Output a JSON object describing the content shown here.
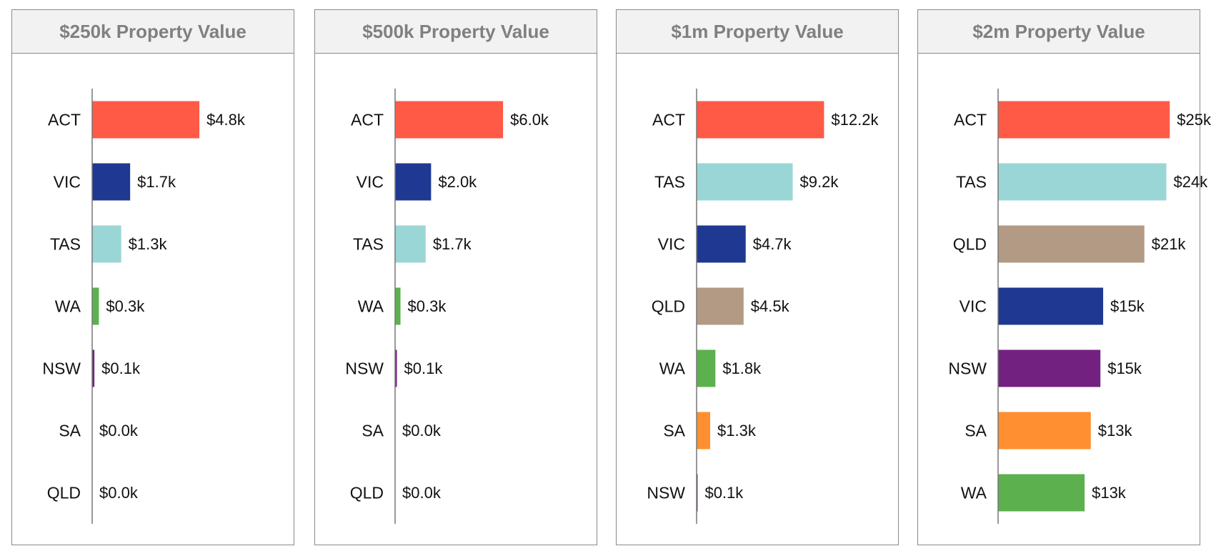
{
  "colors": {
    "ACT": "#FF5A46",
    "VIC": "#1F3892",
    "TAS": "#9BD6D6",
    "WA": "#5DB04E",
    "NSW": "#732181",
    "SA": "#FF8F31",
    "QLD": "#B39A84",
    "axis": "#777777",
    "panel_border": "#8a8a8a",
    "header_bg": "#f2f2f2",
    "title_text": "#808080"
  },
  "chart_data": [
    {
      "type": "bar",
      "orientation": "horizontal",
      "title": "$250k Property Value",
      "xlim": [
        0,
        8.7
      ],
      "categories": [
        "ACT",
        "VIC",
        "TAS",
        "WA",
        "NSW",
        "SA",
        "QLD"
      ],
      "values": [
        4.8,
        1.7,
        1.3,
        0.3,
        0.1,
        0.0,
        0.0
      ],
      "labels": [
        "$4.8k",
        "$1.7k",
        "$1.3k",
        "$0.3k",
        "$0.1k",
        "$0.0k",
        "$0.0k"
      ]
    },
    {
      "type": "bar",
      "orientation": "horizontal",
      "title": "$500k Property Value",
      "xlim": [
        0,
        10.8
      ],
      "categories": [
        "ACT",
        "VIC",
        "TAS",
        "WA",
        "NSW",
        "SA",
        "QLD"
      ],
      "values": [
        6.0,
        2.0,
        1.7,
        0.3,
        0.1,
        0.0,
        0.0
      ],
      "labels": [
        "$6.0k",
        "$2.0k",
        "$1.7k",
        "$0.3k",
        "$0.1k",
        "$0.0k",
        "$0.0k"
      ]
    },
    {
      "type": "bar",
      "orientation": "horizontal",
      "title": "$1m Property Value",
      "xlim": [
        0,
        18.6
      ],
      "categories": [
        "ACT",
        "TAS",
        "VIC",
        "QLD",
        "WA",
        "SA",
        "NSW"
      ],
      "values": [
        12.2,
        9.2,
        4.7,
        4.5,
        1.8,
        1.3,
        0.1
      ],
      "labels": [
        "$12.2k",
        "$9.2k",
        "$4.7k",
        "$4.5k",
        "$1.8k",
        "$1.3k",
        "$0.1k"
      ]
    },
    {
      "type": "bar",
      "orientation": "horizontal",
      "title": "$2m Property Value",
      "xlim": [
        0,
        28.3
      ],
      "categories": [
        "ACT",
        "TAS",
        "QLD",
        "VIC",
        "NSW",
        "SA",
        "WA"
      ],
      "values": [
        25.0,
        24.5,
        21.3,
        15.3,
        14.9,
        13.5,
        12.6
      ],
      "labels": [
        "$25k",
        "$24k",
        "$21k",
        "$15k",
        "$15k",
        "$13k",
        "$13k"
      ]
    }
  ]
}
